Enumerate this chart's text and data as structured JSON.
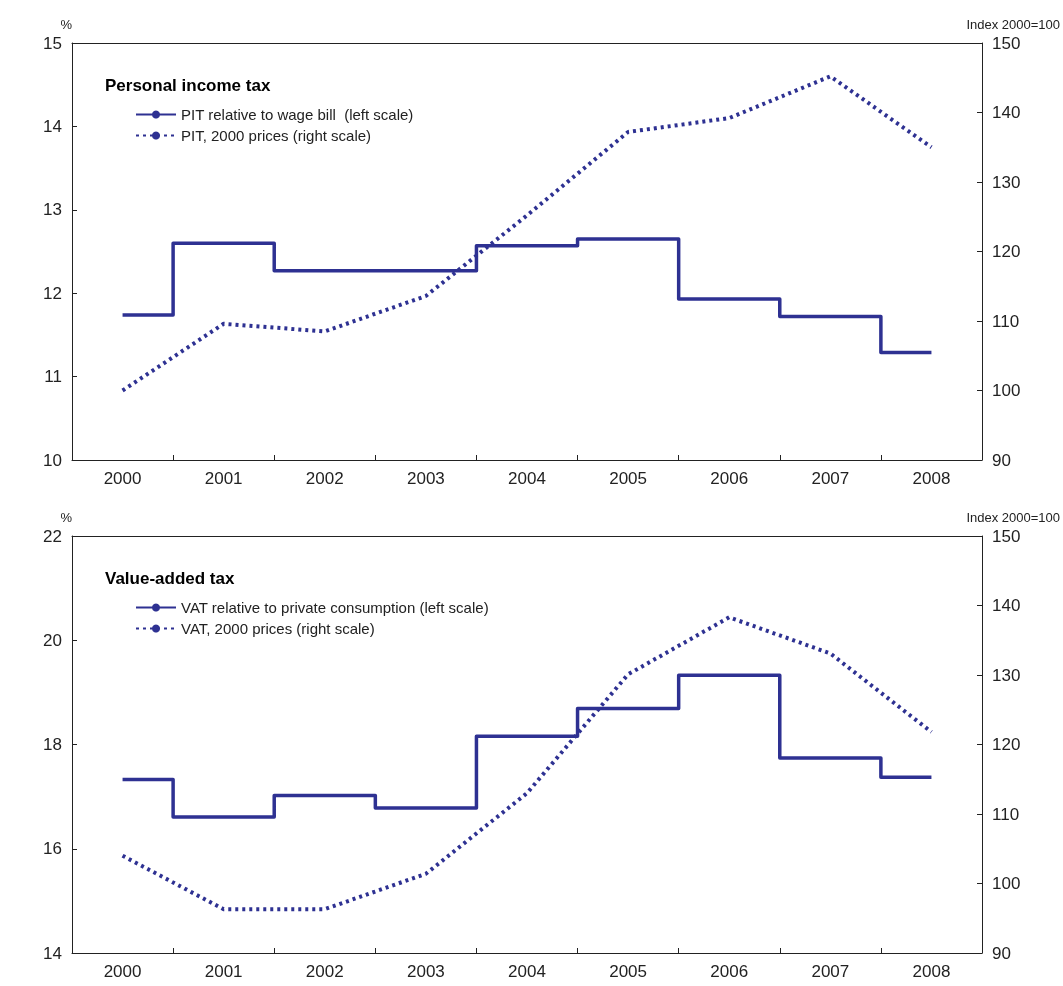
{
  "chart_data": [
    {
      "type": "line",
      "title": "Personal income tax",
      "ylabel": "%",
      "y2label": "Index 2000=100",
      "categories": [
        "2000",
        "2001",
        "2002",
        "2003",
        "2004",
        "2005",
        "2006",
        "2007",
        "2008"
      ],
      "series": [
        {
          "name": "PIT relative to wage bill  (left scale)",
          "type": "step",
          "color": "#2e3192",
          "line_style": "solid",
          "values": [
            11.74,
            12.6,
            12.27,
            12.27,
            12.57,
            12.65,
            11.93,
            11.72,
            11.29
          ]
        },
        {
          "name": "PIT, 2000 prices (right scale)",
          "color": "#2e3192",
          "line_style": "dotted",
          "axis": "y2",
          "values": [
            100,
            109.6,
            108.5,
            113.6,
            125.2,
            137.2,
            139.2,
            145.2,
            135
          ]
        }
      ],
      "ylim": [
        10,
        15
      ],
      "yticks": [
        10,
        11,
        12,
        13,
        14,
        15
      ],
      "y2lim": [
        90,
        150
      ],
      "y2ticks": [
        90,
        100,
        110,
        120,
        130,
        140,
        150
      ],
      "grid": false,
      "legend": "top left",
      "marker": "none"
    },
    {
      "type": "line",
      "title": "Value-added tax",
      "ylabel": "%",
      "y2label": "Index 2000=100",
      "categories": [
        "2000",
        "2001",
        "2002",
        "2003",
        "2004",
        "2005",
        "2006",
        "2007",
        "2008"
      ],
      "series": [
        {
          "name": "VAT relative to private consumption (left scale)",
          "type": "step",
          "color": "#2e3192",
          "line_style": "solid",
          "values": [
            17.33,
            16.61,
            17.02,
            16.78,
            18.16,
            18.69,
            19.33,
            17.74,
            17.37
          ]
        },
        {
          "name": "VAT, 2000 prices (right scale)",
          "color": "#2e3192",
          "line_style": "dotted",
          "axis": "y2",
          "values": [
            104,
            96.3,
            96.3,
            101.4,
            113,
            130.1,
            138.3,
            133.1,
            121.8
          ]
        }
      ],
      "ylim": [
        14,
        22
      ],
      "yticks": [
        14,
        16,
        18,
        20,
        22
      ],
      "y2lim": [
        90,
        150
      ],
      "y2ticks": [
        90,
        100,
        110,
        120,
        130,
        140,
        150
      ],
      "grid": false,
      "legend": "top left",
      "marker": "none"
    }
  ]
}
